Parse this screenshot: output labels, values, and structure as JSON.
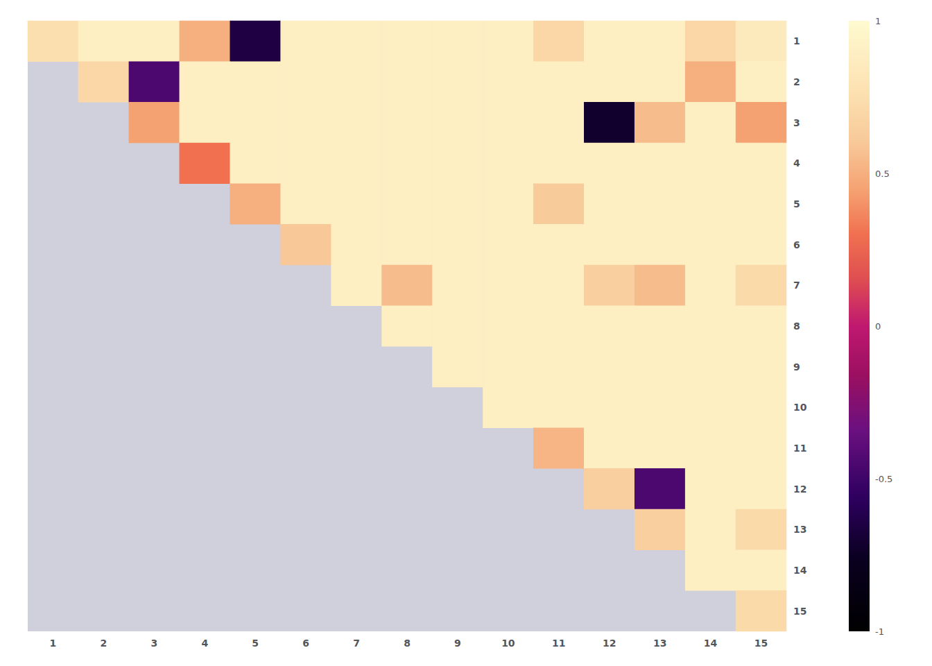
{
  "chart_data": {
    "type": "heatmap",
    "categories": [
      "1",
      "2",
      "3",
      "4",
      "5",
      "6",
      "7",
      "8",
      "9",
      "10",
      "11",
      "12",
      "13",
      "14",
      "15"
    ],
    "matrix": [
      [
        0.75,
        0.9,
        0.9,
        0.5,
        -0.65,
        0.9,
        0.9,
        0.9,
        0.9,
        0.9,
        0.7,
        0.9,
        0.9,
        0.7,
        0.85
      ],
      [
        null,
        0.7,
        -0.45,
        0.9,
        0.9,
        0.9,
        0.9,
        0.9,
        0.9,
        0.9,
        0.9,
        0.9,
        0.9,
        0.5,
        0.9
      ],
      [
        null,
        null,
        0.45,
        0.9,
        0.9,
        0.9,
        0.9,
        0.9,
        0.9,
        0.9,
        0.9,
        -0.72,
        0.55,
        0.9,
        0.45
      ],
      [
        null,
        null,
        null,
        0.3,
        0.9,
        0.9,
        0.9,
        0.9,
        0.9,
        0.9,
        0.9,
        0.9,
        0.9,
        0.9,
        0.9
      ],
      [
        null,
        null,
        null,
        null,
        0.5,
        0.9,
        0.9,
        0.9,
        0.9,
        0.9,
        0.62,
        0.9,
        0.9,
        0.9,
        0.9
      ],
      [
        null,
        null,
        null,
        null,
        null,
        0.6,
        0.9,
        0.9,
        0.9,
        0.9,
        0.9,
        0.9,
        0.9,
        0.9,
        0.9
      ],
      [
        null,
        null,
        null,
        null,
        null,
        null,
        0.9,
        0.55,
        0.9,
        0.9,
        0.9,
        0.65,
        0.55,
        0.9,
        0.72
      ],
      [
        null,
        null,
        null,
        null,
        null,
        null,
        null,
        0.9,
        0.9,
        0.9,
        0.9,
        0.9,
        0.9,
        0.9,
        0.9
      ],
      [
        null,
        null,
        null,
        null,
        null,
        null,
        null,
        null,
        0.9,
        0.9,
        0.9,
        0.9,
        0.9,
        0.9,
        0.9
      ],
      [
        null,
        null,
        null,
        null,
        null,
        null,
        null,
        null,
        null,
        0.9,
        0.9,
        0.9,
        0.9,
        0.9,
        0.9
      ],
      [
        null,
        null,
        null,
        null,
        null,
        null,
        null,
        null,
        null,
        null,
        0.52,
        0.9,
        0.9,
        0.9,
        0.9
      ],
      [
        null,
        null,
        null,
        null,
        null,
        null,
        null,
        null,
        null,
        null,
        null,
        0.65,
        -0.45,
        0.9,
        0.9
      ],
      [
        null,
        null,
        null,
        null,
        null,
        null,
        null,
        null,
        null,
        null,
        null,
        null,
        0.65,
        0.9,
        0.72
      ],
      [
        null,
        null,
        null,
        null,
        null,
        null,
        null,
        null,
        null,
        null,
        null,
        null,
        null,
        0.9,
        0.9
      ],
      [
        null,
        null,
        null,
        null,
        null,
        null,
        null,
        null,
        null,
        null,
        null,
        null,
        null,
        null,
        0.72
      ]
    ],
    "colorbar": {
      "range": [
        -1.0,
        1.0
      ],
      "ticks": [
        -1,
        -0.5,
        0,
        0.5,
        1
      ]
    },
    "colormap": [
      [
        0.0,
        "#000000"
      ],
      [
        0.12,
        "#0a0020"
      ],
      [
        0.22,
        "#2e0060"
      ],
      [
        0.33,
        "#6b1080"
      ],
      [
        0.42,
        "#9b1060"
      ],
      [
        0.5,
        "#c01870"
      ],
      [
        0.58,
        "#e05050"
      ],
      [
        0.65,
        "#f07050"
      ],
      [
        0.72,
        "#f5a070"
      ],
      [
        0.8,
        "#f8c898"
      ],
      [
        0.88,
        "#fce0b0"
      ],
      [
        1.0,
        "#fefad0"
      ]
    ],
    "null_color": "#d0d0dc"
  }
}
